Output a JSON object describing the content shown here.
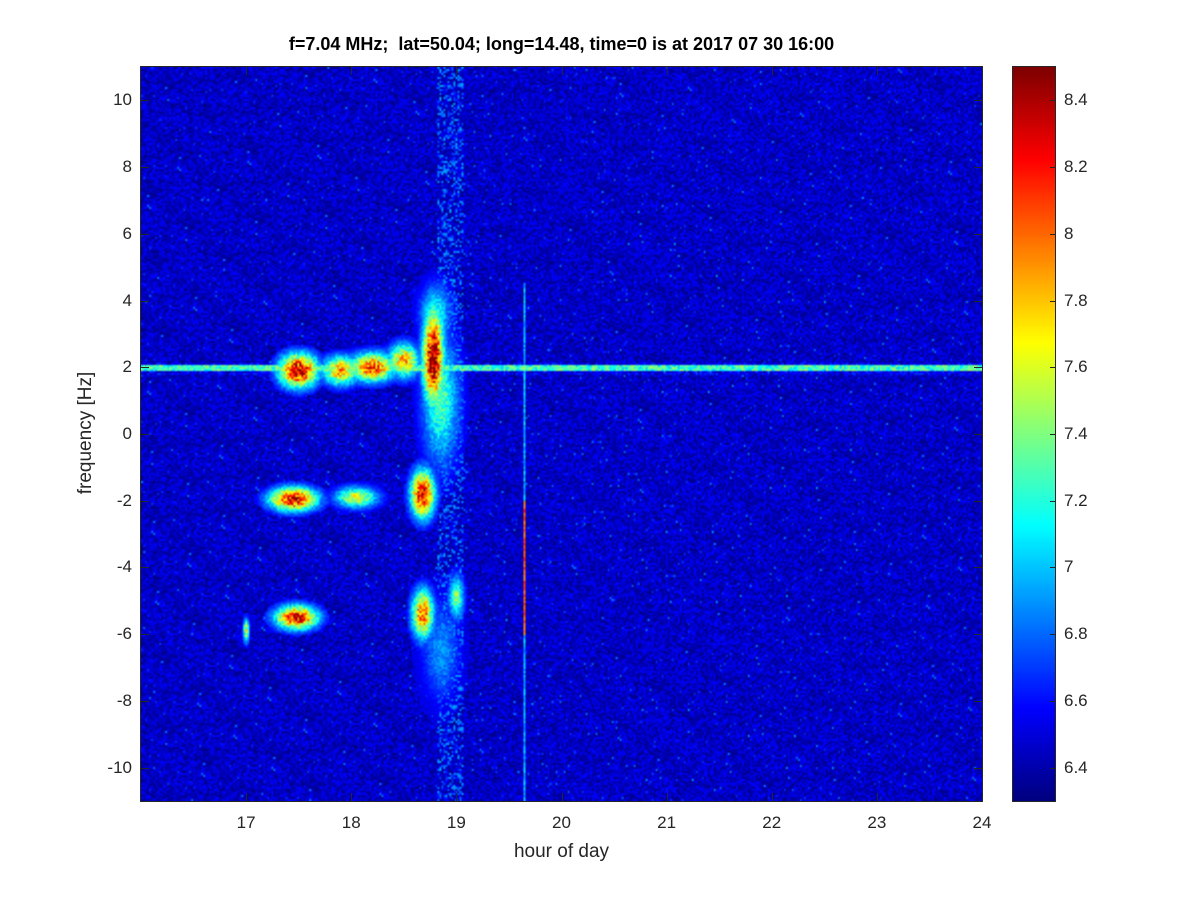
{
  "chart_data": {
    "type": "heatmap",
    "title": "f=7.04 MHz;  lat=50.04; long=14.48, time=0 is at 2017 07 30 16:00",
    "xlabel": "hour of day",
    "ylabel": "frequency [Hz]",
    "xlim": [
      16,
      24
    ],
    "ylim": [
      -11,
      11
    ],
    "xticks": [
      "17",
      "18",
      "19",
      "20",
      "21",
      "22",
      "23",
      "24"
    ],
    "yticks": [
      "10",
      "8",
      "6",
      "4",
      "2",
      "0",
      "-2",
      "-4",
      "-6",
      "-8",
      "-10"
    ],
    "colorbar": {
      "colormap": "jet",
      "range": [
        6.3,
        8.5
      ],
      "ticks": [
        "8.4",
        "8.2",
        "8",
        "7.8",
        "7.6",
        "7.4",
        "7.2",
        "7",
        "6.8",
        "6.6",
        "6.4"
      ]
    },
    "background_level": 6.45,
    "features": [
      {
        "kind": "line",
        "freq": 1.95,
        "x_from": 16.0,
        "x_to": 24.0,
        "level": 7.5
      },
      {
        "kind": "blob",
        "x": 17.5,
        "freq": 1.9,
        "sx": 0.13,
        "sf": 0.35,
        "level": 8.4
      },
      {
        "kind": "blob",
        "x": 17.9,
        "freq": 1.9,
        "sx": 0.12,
        "sf": 0.3,
        "level": 7.9
      },
      {
        "kind": "blob",
        "x": 18.2,
        "freq": 2.0,
        "sx": 0.15,
        "sf": 0.3,
        "level": 8.1
      },
      {
        "kind": "blob",
        "x": 18.5,
        "freq": 2.2,
        "sx": 0.1,
        "sf": 0.35,
        "level": 7.9
      },
      {
        "kind": "blob",
        "x": 18.78,
        "freq": 2.3,
        "sx": 0.07,
        "sf": 1.0,
        "level": 8.5
      },
      {
        "kind": "blob",
        "x": 18.85,
        "freq": 1.0,
        "sx": 0.12,
        "sf": 1.3,
        "level": 7.3
      },
      {
        "kind": "blob",
        "x": 18.8,
        "freq": 3.6,
        "sx": 0.1,
        "sf": 0.6,
        "level": 7.2
      },
      {
        "kind": "blob",
        "x": 17.45,
        "freq": -1.95,
        "sx": 0.16,
        "sf": 0.25,
        "level": 8.3
      },
      {
        "kind": "blob",
        "x": 18.05,
        "freq": -1.9,
        "sx": 0.14,
        "sf": 0.22,
        "level": 7.6
      },
      {
        "kind": "blob",
        "x": 18.68,
        "freq": -1.8,
        "sx": 0.08,
        "sf": 0.5,
        "level": 8.3
      },
      {
        "kind": "blob",
        "x": 17.48,
        "freq": -5.5,
        "sx": 0.14,
        "sf": 0.25,
        "level": 8.3
      },
      {
        "kind": "blob",
        "x": 18.68,
        "freq": -5.4,
        "sx": 0.07,
        "sf": 0.5,
        "level": 8.1
      },
      {
        "kind": "blob",
        "x": 19.0,
        "freq": -4.9,
        "sx": 0.05,
        "sf": 0.45,
        "level": 7.4
      },
      {
        "kind": "blob",
        "x": 18.85,
        "freq": -6.5,
        "sx": 0.12,
        "sf": 1.0,
        "level": 6.9
      },
      {
        "kind": "blob",
        "x": 17.0,
        "freq": -5.9,
        "sx": 0.02,
        "sf": 0.25,
        "level": 7.6
      },
      {
        "kind": "vline",
        "x": 19.65,
        "freq_from": -11.0,
        "freq_to": 4.5,
        "level": 7.1
      },
      {
        "kind": "vline",
        "x": 19.65,
        "freq_from": -6.0,
        "freq_to": -2.0,
        "level": 8.2
      },
      {
        "kind": "vband",
        "x": 18.95,
        "width": 0.25,
        "freq_from": -11.0,
        "freq_to": 11.0,
        "level": 6.65
      }
    ]
  }
}
